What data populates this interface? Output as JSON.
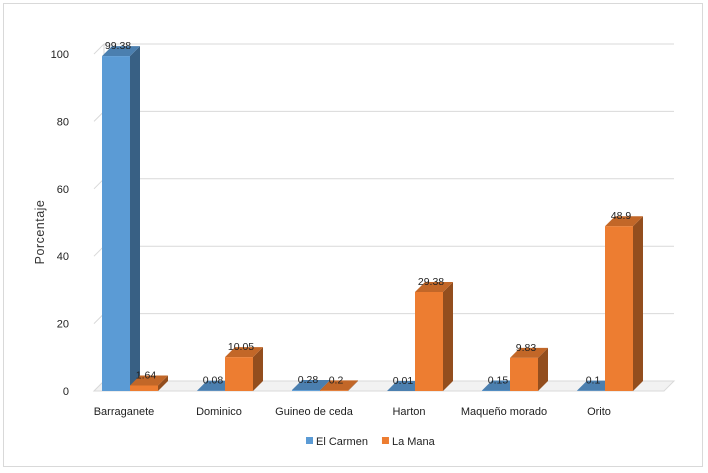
{
  "chart_data": {
    "type": "bar",
    "title": "",
    "xlabel": "",
    "ylabel": "Porcentaje",
    "ylim": [
      0,
      100
    ],
    "yticks": [
      0,
      20,
      40,
      60,
      80,
      100
    ],
    "grid": true,
    "legend_position": "bottom",
    "style": "3d-clustered-column",
    "categories": [
      "Barraganete",
      "Dominico",
      "Guineo de ceda",
      "Harton",
      "Maqueño morado",
      "Orito"
    ],
    "series": [
      {
        "name": "El Carmen",
        "color": "#5b9bd5",
        "values": [
          99.38,
          0.08,
          0.28,
          0.01,
          0.15,
          0.1
        ],
        "labels": [
          "99.38",
          "0.08",
          "0.28",
          "0.01",
          "0.15",
          "0.1"
        ]
      },
      {
        "name": "La Mana",
        "color": "#ed7d31",
        "values": [
          1.64,
          10.05,
          0.2,
          29.38,
          9.83,
          48.9
        ],
        "labels": [
          "1.64",
          "10.05",
          "0.2",
          "29.38",
          "9.83",
          "48.9"
        ]
      }
    ]
  }
}
